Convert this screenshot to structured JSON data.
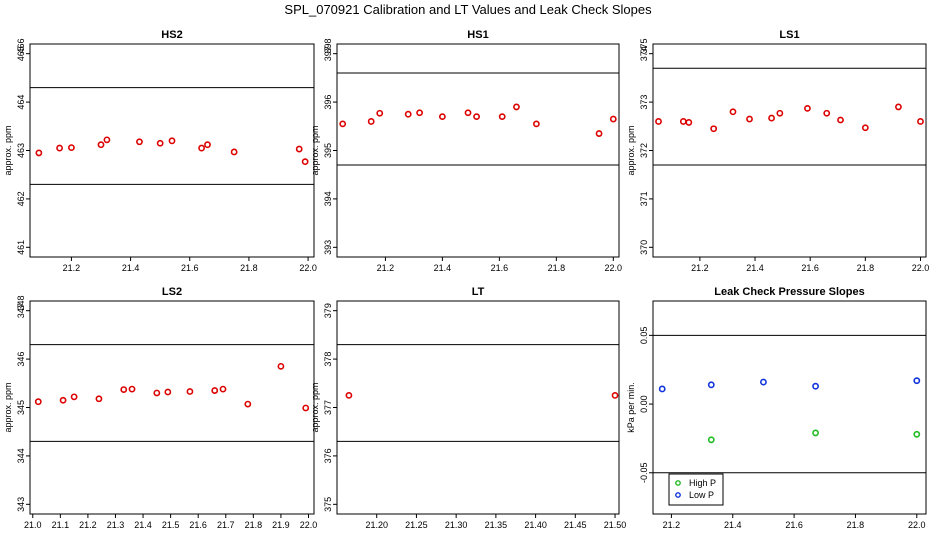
{
  "title": "SPL_070921  Calibration and LT Values and Leak Check Slopes",
  "chart_data": [
    {
      "type": "scatter",
      "title": "HS2",
      "ylabel": "approx. ppm",
      "xlim": [
        21.06,
        22.02
      ],
      "ylim": [
        460.8,
        465.2
      ],
      "xticks": [
        "21.2",
        "21.4",
        "21.6",
        "21.8",
        "22.0"
      ],
      "yticks": [
        "461",
        "462",
        "463",
        "464",
        "465",
        "466"
      ],
      "hlines": [
        462.3,
        464.3
      ],
      "series": [
        {
          "color": "#dd0000",
          "points": [
            [
              21.09,
              462.95
            ],
            [
              21.16,
              463.05
            ],
            [
              21.2,
              463.06
            ],
            [
              21.3,
              463.12
            ],
            [
              21.32,
              463.22
            ],
            [
              21.43,
              463.18
            ],
            [
              21.5,
              463.15
            ],
            [
              21.54,
              463.2
            ],
            [
              21.64,
              463.05
            ],
            [
              21.66,
              463.12
            ],
            [
              21.75,
              462.97
            ],
            [
              21.97,
              463.03
            ],
            [
              21.99,
              462.77
            ]
          ]
        }
      ]
    },
    {
      "type": "scatter",
      "title": "HS1",
      "ylabel": "approx. ppm",
      "xlim": [
        21.03,
        22.02
      ],
      "ylim": [
        392.8,
        397.2
      ],
      "xticks": [
        "21.2",
        "21.4",
        "21.6",
        "21.8",
        "22.0"
      ],
      "yticks": [
        "393",
        "394",
        "395",
        "396",
        "397",
        "398"
      ],
      "hlines": [
        394.7,
        396.6
      ],
      "series": [
        {
          "color": "#dd0000",
          "points": [
            [
              21.05,
              395.55
            ],
            [
              21.15,
              395.6
            ],
            [
              21.18,
              395.77
            ],
            [
              21.28,
              395.75
            ],
            [
              21.32,
              395.78
            ],
            [
              21.4,
              395.7
            ],
            [
              21.49,
              395.78
            ],
            [
              21.52,
              395.7
            ],
            [
              21.61,
              395.7
            ],
            [
              21.66,
              395.9
            ],
            [
              21.73,
              395.55
            ],
            [
              21.95,
              395.35
            ],
            [
              22.0,
              395.65
            ]
          ]
        }
      ]
    },
    {
      "type": "scatter",
      "title": "LS1",
      "ylabel": "approx. ppm",
      "xlim": [
        21.03,
        22.02
      ],
      "ylim": [
        369.8,
        374.2
      ],
      "xticks": [
        "21.2",
        "21.4",
        "21.6",
        "21.8",
        "22.0"
      ],
      "yticks": [
        "370",
        "371",
        "372",
        "373",
        "374",
        "375"
      ],
      "hlines": [
        371.7,
        373.7
      ],
      "series": [
        {
          "color": "#dd0000",
          "points": [
            [
              21.05,
              372.6
            ],
            [
              21.14,
              372.6
            ],
            [
              21.16,
              372.58
            ],
            [
              21.25,
              372.45
            ],
            [
              21.32,
              372.8
            ],
            [
              21.38,
              372.65
            ],
            [
              21.46,
              372.67
            ],
            [
              21.49,
              372.77
            ],
            [
              21.59,
              372.87
            ],
            [
              21.66,
              372.77
            ],
            [
              21.71,
              372.63
            ],
            [
              21.8,
              372.47
            ],
            [
              21.92,
              372.9
            ],
            [
              22.0,
              372.6
            ]
          ]
        }
      ]
    },
    {
      "type": "scatter",
      "title": "LS2",
      "ylabel": "approx. ppm",
      "xlim": [
        20.99,
        22.02
      ],
      "ylim": [
        342.8,
        347.2
      ],
      "xticks": [
        "21.0",
        "21.1",
        "21.2",
        "21.3",
        "21.4",
        "21.5",
        "21.6",
        "21.7",
        "21.8",
        "21.9",
        "22.0"
      ],
      "yticks": [
        "343",
        "344",
        "345",
        "346",
        "347",
        "348"
      ],
      "hlines": [
        344.3,
        346.3
      ],
      "series": [
        {
          "color": "#dd0000",
          "points": [
            [
              21.02,
              345.12
            ],
            [
              21.11,
              345.15
            ],
            [
              21.15,
              345.22
            ],
            [
              21.24,
              345.18
            ],
            [
              21.33,
              345.37
            ],
            [
              21.36,
              345.38
            ],
            [
              21.45,
              345.3
            ],
            [
              21.49,
              345.32
            ],
            [
              21.57,
              345.33
            ],
            [
              21.66,
              345.35
            ],
            [
              21.69,
              345.38
            ],
            [
              21.78,
              345.07
            ],
            [
              21.9,
              345.85
            ],
            [
              21.99,
              344.99
            ]
          ]
        }
      ]
    },
    {
      "type": "scatter",
      "title": "LT",
      "ylabel": "approx. ppm",
      "xlim": [
        21.15,
        21.505
      ],
      "ylim": [
        374.8,
        379.2
      ],
      "xticks": [
        "21.20",
        "21.25",
        "21.30",
        "21.35",
        "21.40",
        "21.45",
        "21.50"
      ],
      "yticks": [
        "375",
        "376",
        "377",
        "378",
        "379"
      ],
      "hlines": [
        376.3,
        378.3
      ],
      "series": [
        {
          "color": "#dd0000",
          "points": [
            [
              21.165,
              377.25
            ],
            [
              21.5,
              377.25
            ]
          ]
        }
      ]
    },
    {
      "type": "scatter",
      "title": "Leak Check Pressure Slopes",
      "ylabel": "kPa per min.",
      "xlim": [
        21.14,
        22.03
      ],
      "ylim": [
        -0.08,
        0.075
      ],
      "xticks": [
        "21.2",
        "21.4",
        "21.6",
        "21.8",
        "22.0"
      ],
      "yticks": [
        "-0.05",
        "0.00",
        "0.05"
      ],
      "hlines": [
        0.05,
        -0.05
      ],
      "legend": {
        "position": "bottom-left"
      },
      "series": [
        {
          "name": "High P",
          "color": "#22bb22",
          "points": [
            [
              21.33,
              -0.026
            ],
            [
              21.67,
              -0.021
            ],
            [
              22.0,
              -0.022
            ]
          ]
        },
        {
          "name": "Low P",
          "color": "#1133dd",
          "points": [
            [
              21.17,
              0.011
            ],
            [
              21.33,
              0.014
            ],
            [
              21.5,
              0.016
            ],
            [
              21.67,
              0.013
            ],
            [
              22.0,
              0.017
            ]
          ]
        }
      ]
    }
  ]
}
